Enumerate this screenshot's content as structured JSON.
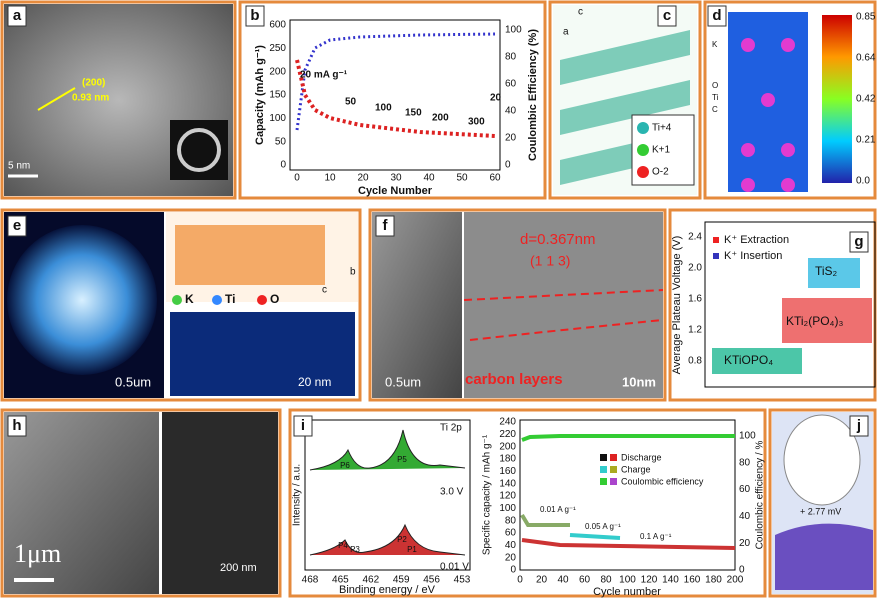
{
  "panel_a": {
    "label": "a",
    "annotations": [
      "(200)",
      "0.93 nm"
    ],
    "scale_bar": "5 nm"
  },
  "panel_b": {
    "label": "b",
    "y_label": "Capacity (mAh g⁻¹)",
    "y2_label": "Coulombic Efficiency (%)",
    "x_label": "Cycle Number",
    "x_ticks": [
      0,
      10,
      20,
      30,
      40,
      50,
      60
    ],
    "y_ticks": [
      600,
      250,
      200,
      150,
      100,
      50,
      0
    ],
    "y2_ticks": [
      100,
      80,
      60,
      40,
      20,
      0
    ],
    "rate_labels": [
      "20 mA g⁻¹",
      "50",
      "100",
      "150",
      "200",
      "300",
      "20"
    ]
  },
  "panel_c": {
    "label": "c",
    "axis_labels": [
      "c",
      "a"
    ],
    "legend": [
      "Ti+4",
      "K+1",
      "O-2"
    ]
  },
  "panel_d": {
    "label": "d",
    "atom_labels": [
      "K",
      "O",
      "Ti",
      "C"
    ],
    "colorbar_ticks": [
      "0.85",
      "0.64",
      "0.42",
      "0.21",
      "0.0"
    ]
  },
  "panel_e": {
    "label": "e",
    "legend": [
      "K",
      "Ti",
      "O"
    ],
    "axis_labels": [
      "b",
      "c"
    ],
    "scale_bars": [
      "0.5um",
      "20 nm"
    ]
  },
  "panel_f": {
    "label": "f",
    "annotations": [
      "d=0.367nm",
      "(1 1 3)",
      "carbon layers"
    ],
    "scale_bars": [
      "0.5um",
      "10nm"
    ]
  },
  "panel_g": {
    "label": "g",
    "y_label": "Average Plateau Voltage (V)",
    "y_ticks": [
      "2.4",
      "2.0",
      "1.6",
      "1.2",
      "0.8"
    ],
    "legend": [
      "K⁺ Extraction",
      "K⁺ Insertion"
    ],
    "compounds": [
      "TiS₂",
      "KTi₂(PO₄)₃",
      "KTiOPO₄"
    ]
  },
  "panel_h": {
    "label": "h",
    "scale_bars": [
      "1μm",
      "200 nm"
    ]
  },
  "panel_i": {
    "label": "i",
    "left": {
      "title": "Ti 2p",
      "y_label": "Intensity / a.u.",
      "x_label": "Binding energy / eV",
      "x_ticks": [
        468,
        465,
        462,
        459,
        456,
        453
      ],
      "peaks": [
        "P6",
        "P5",
        "P4",
        "P3",
        "P2",
        "P1"
      ],
      "voltages": [
        "3.0 V",
        "0.01 V"
      ]
    },
    "right": {
      "y_label": "Specific capacity / mAh g⁻¹",
      "y2_label": "Coulombic efficiency / %",
      "x_label": "Cycle number",
      "x_ticks": [
        0,
        20,
        40,
        60,
        80,
        100,
        120,
        140,
        160,
        180,
        200
      ],
      "y_ticks": [
        240,
        220,
        200,
        180,
        160,
        140,
        120,
        100,
        80,
        60,
        40,
        20,
        0
      ],
      "y2_ticks": [
        100,
        80,
        60,
        40,
        20,
        0
      ],
      "legend": [
        "Discharge",
        "Charge",
        "Coulombic efficiency"
      ],
      "rates": [
        "0.01 A g⁻¹",
        "0.05 A g⁻¹",
        "0.1 A g⁻¹"
      ]
    }
  },
  "panel_j": {
    "label": "j",
    "annotation": "+ 2.77 mV"
  }
}
